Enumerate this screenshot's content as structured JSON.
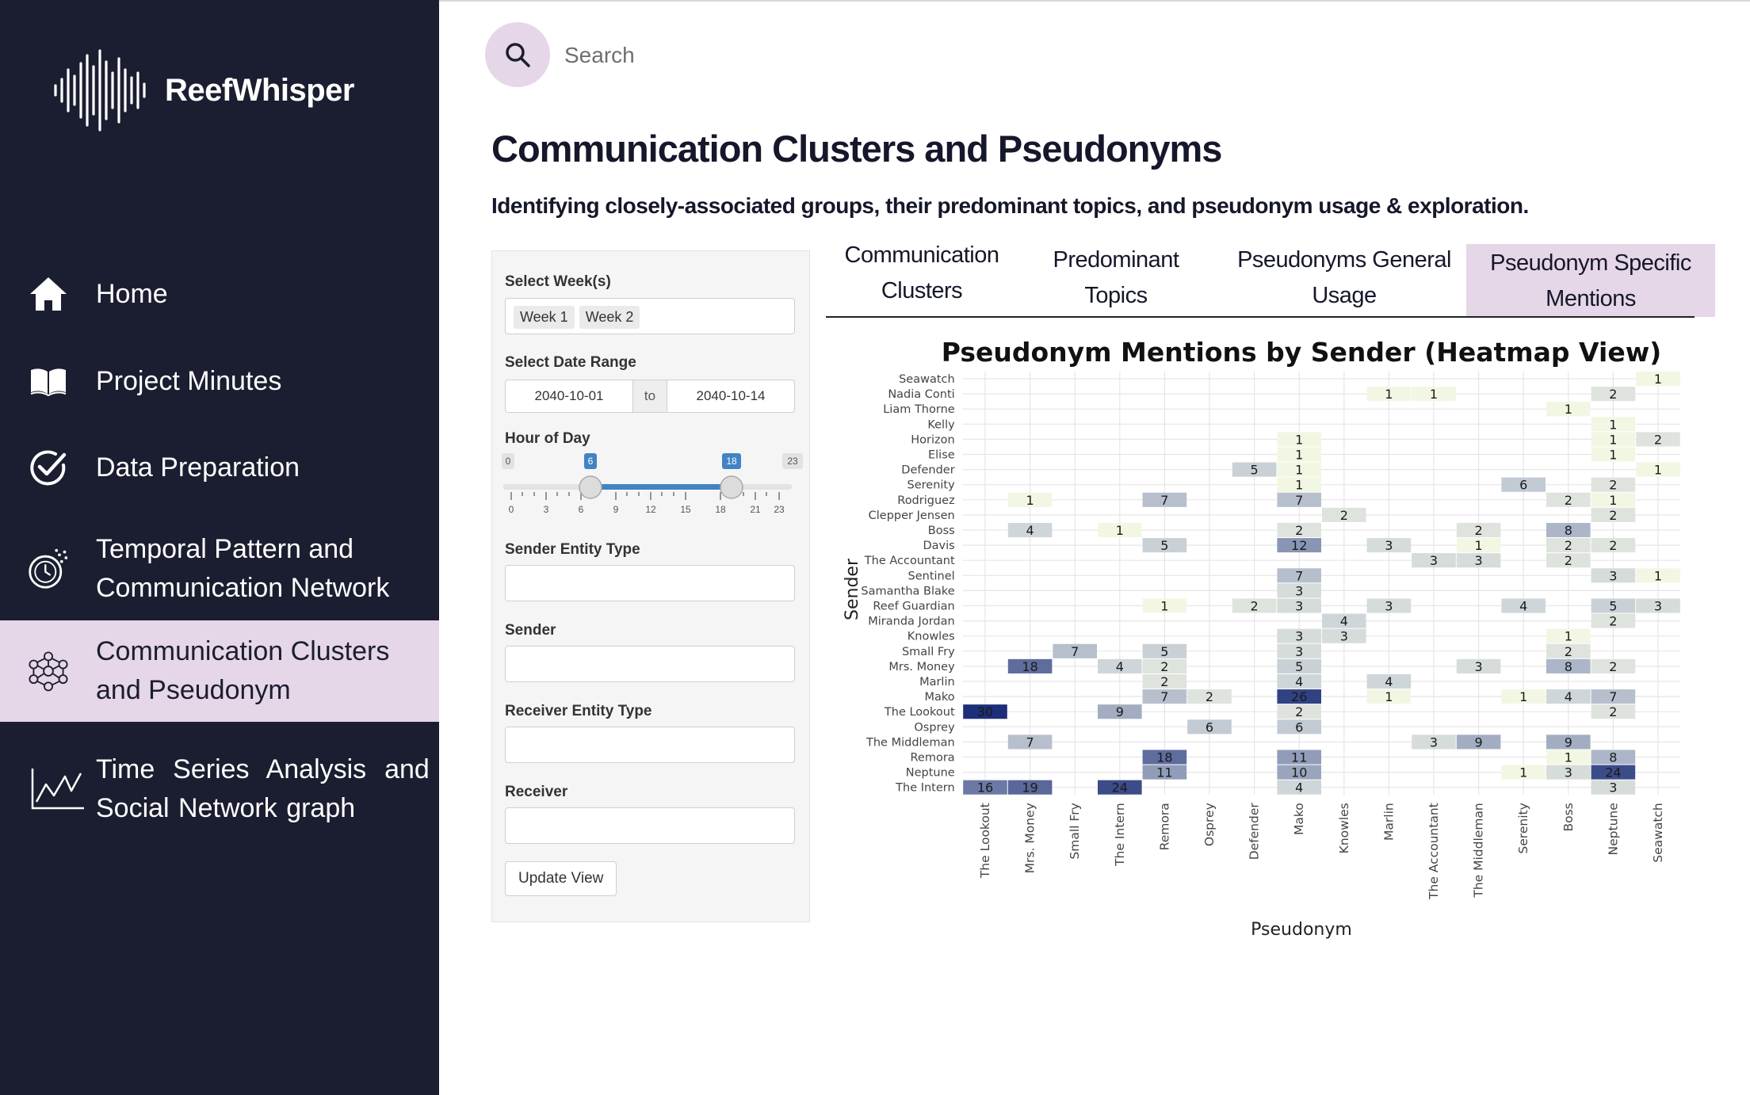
{
  "app": {
    "name": "ReefWhisper"
  },
  "sidebar": {
    "items": [
      {
        "label": "Home",
        "icon": "home-icon"
      },
      {
        "label": "Project Minutes",
        "icon": "book-icon"
      },
      {
        "label": "Data Preparation",
        "icon": "check-circle-icon"
      },
      {
        "label_line1": "Temporal Pattern and",
        "label_line2": "Communication Network",
        "icon": "clock-timer-icon"
      },
      {
        "label_line1": "Communication Clusters",
        "label_line2": "and Pseudonym",
        "icon": "network-cluster-icon",
        "active": true
      },
      {
        "label_line1": "Time  Series  Analysis  and",
        "label_line2": "Social Network graph",
        "icon": "line-chart-icon"
      }
    ]
  },
  "search": {
    "placeholder": "Search"
  },
  "page": {
    "title": "Communication Clusters and Pseudonyms",
    "subtitle": "Identifying closely-associated groups, their predominant topics, and pseudonym usage & exploration."
  },
  "filters": {
    "weeks_label": "Select Week(s)",
    "weeks": [
      "Week 1",
      "Week 2"
    ],
    "date_range_label": "Select Date Range",
    "date_start": "2040-10-01",
    "date_sep": "to",
    "date_end": "2040-10-14",
    "hour_label": "Hour of Day",
    "hour_min": "0",
    "hour_max": "23",
    "hour_from": "6",
    "hour_to": "18",
    "hour_ticks": [
      "0",
      "3",
      "6",
      "9",
      "12",
      "15",
      "18",
      "21",
      "23"
    ],
    "sender_entity_label": "Sender Entity Type",
    "sender_label": "Sender",
    "receiver_entity_label": "Receiver Entity Type",
    "receiver_label": "Receiver",
    "update_button": "Update View"
  },
  "tabs": [
    {
      "line1": "Communication",
      "line2": "Clusters"
    },
    {
      "line1": "Predominant",
      "line2": "Topics"
    },
    {
      "line1": "Pseudonyms General",
      "line2": "Usage"
    },
    {
      "line1": "Pseudonym Specific",
      "line2": "Mentions",
      "active": true
    }
  ],
  "colors": {
    "sidebar_bg": "#1b1e30",
    "accent": "#e5d7e8",
    "heat_low": "#f2f7e3",
    "heat_high": "#1d2f78"
  },
  "chart_data": {
    "type": "heatmap",
    "title": "Pseudonym Mentions by Sender (Heatmap View)",
    "xlabel": "Pseudonym",
    "ylabel": "Sender",
    "x": [
      "The Lookout",
      "Mrs. Money",
      "Small Fry",
      "The Intern",
      "Remora",
      "Osprey",
      "Defender",
      "Mako",
      "Knowles",
      "Marlin",
      "The Accountant",
      "The Middleman",
      "Serenity",
      "Boss",
      "Neptune",
      "Seawatch"
    ],
    "y": [
      "Seawatch",
      "Nadia Conti",
      "Liam Thorne",
      "Kelly",
      "Horizon",
      "Elise",
      "Defender",
      "Serenity",
      "Rodriguez",
      "Clepper Jensen",
      "Boss",
      "Davis",
      "The Accountant",
      "Sentinel",
      "Samantha Blake",
      "Reef Guardian",
      "Miranda Jordan",
      "Knowles",
      "Small Fry",
      "Mrs. Money",
      "Marlin",
      "Mako",
      "The Lookout",
      "Osprey",
      "The Middleman",
      "Remora",
      "Neptune",
      "The Intern"
    ],
    "cells": [
      [
        "Seawatch",
        "Seawatch",
        1
      ],
      [
        "Nadia Conti",
        "Marlin",
        1
      ],
      [
        "Nadia Conti",
        "The Accountant",
        1
      ],
      [
        "Nadia Conti",
        "Neptune",
        2
      ],
      [
        "Liam Thorne",
        "Boss",
        1
      ],
      [
        "Kelly",
        "Neptune",
        1
      ],
      [
        "Horizon",
        "Mako",
        1
      ],
      [
        "Horizon",
        "Neptune",
        1
      ],
      [
        "Horizon",
        "Seawatch",
        2
      ],
      [
        "Elise",
        "Mako",
        1
      ],
      [
        "Elise",
        "Neptune",
        1
      ],
      [
        "Defender",
        "Defender",
        5
      ],
      [
        "Defender",
        "Mako",
        1
      ],
      [
        "Defender",
        "Seawatch",
        1
      ],
      [
        "Serenity",
        "Mako",
        1
      ],
      [
        "Serenity",
        "Serenity",
        6
      ],
      [
        "Serenity",
        "Neptune",
        2
      ],
      [
        "Rodriguez",
        "Mrs. Money",
        1
      ],
      [
        "Rodriguez",
        "Remora",
        7
      ],
      [
        "Rodriguez",
        "Mako",
        7
      ],
      [
        "Rodriguez",
        "Boss",
        2
      ],
      [
        "Rodriguez",
        "Neptune",
        1
      ],
      [
        "Clepper Jensen",
        "Knowles",
        2
      ],
      [
        "Clepper Jensen",
        "Neptune",
        2
      ],
      [
        "Boss",
        "Mrs. Money",
        4
      ],
      [
        "Boss",
        "The Intern",
        1
      ],
      [
        "Boss",
        "Mako",
        2
      ],
      [
        "Boss",
        "The Middleman",
        2
      ],
      [
        "Boss",
        "Boss",
        8
      ],
      [
        "Davis",
        "Remora",
        5
      ],
      [
        "Davis",
        "Mako",
        12
      ],
      [
        "Davis",
        "Marlin",
        3
      ],
      [
        "Davis",
        "The Middleman",
        1
      ],
      [
        "Davis",
        "Boss",
        2
      ],
      [
        "Davis",
        "Neptune",
        2
      ],
      [
        "The Accountant",
        "The Accountant",
        3
      ],
      [
        "The Accountant",
        "The Middleman",
        3
      ],
      [
        "The Accountant",
        "Boss",
        2
      ],
      [
        "Sentinel",
        "Mako",
        7
      ],
      [
        "Sentinel",
        "Neptune",
        3
      ],
      [
        "Sentinel",
        "Seawatch",
        1
      ],
      [
        "Samantha Blake",
        "Mako",
        3
      ],
      [
        "Reef Guardian",
        "Remora",
        1
      ],
      [
        "Reef Guardian",
        "Defender",
        2
      ],
      [
        "Reef Guardian",
        "Mako",
        3
      ],
      [
        "Reef Guardian",
        "Marlin",
        3
      ],
      [
        "Reef Guardian",
        "Serenity",
        4
      ],
      [
        "Reef Guardian",
        "Neptune",
        5
      ],
      [
        "Reef Guardian",
        "Seawatch",
        3
      ],
      [
        "Miranda Jordan",
        "Knowles",
        4
      ],
      [
        "Miranda Jordan",
        "Neptune",
        2
      ],
      [
        "Knowles",
        "Mako",
        3
      ],
      [
        "Knowles",
        "Knowles",
        3
      ],
      [
        "Knowles",
        "Boss",
        1
      ],
      [
        "Small Fry",
        "Small Fry",
        7
      ],
      [
        "Small Fry",
        "Remora",
        5
      ],
      [
        "Small Fry",
        "Mako",
        3
      ],
      [
        "Small Fry",
        "Boss",
        2
      ],
      [
        "Mrs. Money",
        "Mrs. Money",
        18
      ],
      [
        "Mrs. Money",
        "The Intern",
        4
      ],
      [
        "Mrs. Money",
        "Remora",
        2
      ],
      [
        "Mrs. Money",
        "Mako",
        5
      ],
      [
        "Mrs. Money",
        "The Middleman",
        3
      ],
      [
        "Mrs. Money",
        "Boss",
        8
      ],
      [
        "Mrs. Money",
        "Neptune",
        2
      ],
      [
        "Marlin",
        "Remora",
        2
      ],
      [
        "Marlin",
        "Mako",
        4
      ],
      [
        "Marlin",
        "Marlin",
        4
      ],
      [
        "Mako",
        "Remora",
        7
      ],
      [
        "Mako",
        "Osprey",
        2
      ],
      [
        "Mako",
        "Mako",
        26
      ],
      [
        "Mako",
        "Marlin",
        1
      ],
      [
        "Mako",
        "Serenity",
        1
      ],
      [
        "Mako",
        "Boss",
        4
      ],
      [
        "Mako",
        "Neptune",
        7
      ],
      [
        "The Lookout",
        "The Lookout",
        30
      ],
      [
        "The Lookout",
        "The Intern",
        9
      ],
      [
        "The Lookout",
        "Mako",
        2
      ],
      [
        "The Lookout",
        "Neptune",
        2
      ],
      [
        "Osprey",
        "Osprey",
        6
      ],
      [
        "Osprey",
        "Mako",
        6
      ],
      [
        "The Middleman",
        "Mrs. Money",
        7
      ],
      [
        "The Middleman",
        "The Accountant",
        3
      ],
      [
        "The Middleman",
        "The Middleman",
        9
      ],
      [
        "The Middleman",
        "Boss",
        9
      ],
      [
        "Remora",
        "Remora",
        18
      ],
      [
        "Remora",
        "Mako",
        11
      ],
      [
        "Remora",
        "Boss",
        1
      ],
      [
        "Remora",
        "Neptune",
        8
      ],
      [
        "Neptune",
        "Remora",
        11
      ],
      [
        "Neptune",
        "Mako",
        10
      ],
      [
        "Neptune",
        "Serenity",
        1
      ],
      [
        "Neptune",
        "Boss",
        3
      ],
      [
        "Neptune",
        "Neptune",
        24
      ],
      [
        "The Intern",
        "The Lookout",
        16
      ],
      [
        "The Intern",
        "Mrs. Money",
        19
      ],
      [
        "The Intern",
        "The Intern",
        24
      ],
      [
        "The Intern",
        "Mako",
        4
      ],
      [
        "The Intern",
        "Neptune",
        3
      ]
    ],
    "value_range": [
      1,
      30
    ],
    "grid": true,
    "legend": "none"
  }
}
